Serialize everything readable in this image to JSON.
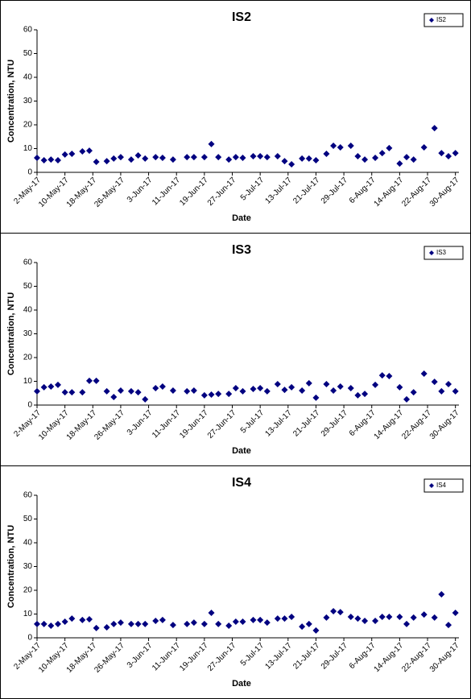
{
  "chart_data": [
    {
      "type": "scatter",
      "title": "IS2",
      "x_label": "Date",
      "y_label": "Concentration, NTU",
      "legend": "upper right",
      "grid": false,
      "x": [
        "2017-05-02",
        "2017-05-04",
        "2017-05-06",
        "2017-05-08",
        "2017-05-10",
        "2017-05-12",
        "2017-05-15",
        "2017-05-17",
        "2017-05-19",
        "2017-05-22",
        "2017-05-24",
        "2017-05-26",
        "2017-05-29",
        "2017-05-31",
        "2017-06-02",
        "2017-06-05",
        "2017-06-07",
        "2017-06-10",
        "2017-06-14",
        "2017-06-16",
        "2017-06-19",
        "2017-06-21",
        "2017-06-23",
        "2017-06-26",
        "2017-06-28",
        "2017-06-30",
        "2017-07-03",
        "2017-07-05",
        "2017-07-07",
        "2017-07-10",
        "2017-07-12",
        "2017-07-14",
        "2017-07-17",
        "2017-07-19",
        "2017-07-21",
        "2017-07-24",
        "2017-07-26",
        "2017-07-28",
        "2017-07-31",
        "2017-08-02",
        "2017-08-04",
        "2017-08-07",
        "2017-08-09",
        "2017-08-11",
        "2017-08-14",
        "2017-08-16",
        "2017-08-18",
        "2017-08-21",
        "2017-08-24",
        "2017-08-26",
        "2017-08-28",
        "2017-08-30"
      ],
      "series": [
        {
          "name": "IS2",
          "color": "#000080",
          "values": [
            6.1,
            5.1,
            5.4,
            5.1,
            7.5,
            7.8,
            8.8,
            9.1,
            4.4,
            4.7,
            5.8,
            6.4,
            5.4,
            7.1,
            5.8,
            6.4,
            6.1,
            5.4,
            6.4,
            6.4,
            6.4,
            11.9,
            6.4,
            5.4,
            6.4,
            6.1,
            6.8,
            6.8,
            6.4,
            6.8,
            4.7,
            3.4,
            5.8,
            5.8,
            5.1,
            7.8,
            11.2,
            10.5,
            11.2,
            6.8,
            5.4,
            6.1,
            8.1,
            10.2,
            3.7,
            6.4,
            5.4,
            10.5,
            18.6,
            8.1,
            6.8,
            8.1
          ]
        }
      ],
      "xlim": [
        "2017-05-02",
        "2017-08-31"
      ],
      "ylim": [
        0,
        60
      ],
      "yticks": [
        0,
        10,
        20,
        30,
        40,
        50,
        60
      ],
      "xticks": [
        {
          "value": "2017-05-02",
          "label": "2-May-17"
        },
        {
          "value": "2017-05-10",
          "label": "10-May-17"
        },
        {
          "value": "2017-05-18",
          "label": "18-May-17"
        },
        {
          "value": "2017-05-26",
          "label": "26-May-17"
        },
        {
          "value": "2017-06-03",
          "label": "3-Jun-17"
        },
        {
          "value": "2017-06-11",
          "label": "11-Jun-17"
        },
        {
          "value": "2017-06-19",
          "label": "19-Jun-17"
        },
        {
          "value": "2017-06-27",
          "label": "27-Jun-17"
        },
        {
          "value": "2017-07-05",
          "label": "5-Jul-17"
        },
        {
          "value": "2017-07-13",
          "label": "13-Jul-17"
        },
        {
          "value": "2017-07-21",
          "label": "21-Jul-17"
        },
        {
          "value": "2017-07-29",
          "label": "29-Jul-17"
        },
        {
          "value": "2017-08-06",
          "label": "6-Aug-17"
        },
        {
          "value": "2017-08-14",
          "label": "14-Aug-17"
        },
        {
          "value": "2017-08-22",
          "label": "22-Aug-17"
        },
        {
          "value": "2017-08-30",
          "label": "30-Aug-17"
        }
      ]
    },
    {
      "type": "scatter",
      "title": "IS3",
      "x_label": "Date",
      "y_label": "Concentration, NTU",
      "legend": "upper right",
      "grid": false,
      "x": [
        "2017-05-02",
        "2017-05-04",
        "2017-05-06",
        "2017-05-08",
        "2017-05-10",
        "2017-05-12",
        "2017-05-15",
        "2017-05-17",
        "2017-05-19",
        "2017-05-22",
        "2017-05-24",
        "2017-05-26",
        "2017-05-29",
        "2017-05-31",
        "2017-06-02",
        "2017-06-05",
        "2017-06-07",
        "2017-06-10",
        "2017-06-14",
        "2017-06-16",
        "2017-06-19",
        "2017-06-21",
        "2017-06-23",
        "2017-06-26",
        "2017-06-28",
        "2017-06-30",
        "2017-07-03",
        "2017-07-05",
        "2017-07-07",
        "2017-07-10",
        "2017-07-12",
        "2017-07-14",
        "2017-07-17",
        "2017-07-19",
        "2017-07-21",
        "2017-07-24",
        "2017-07-26",
        "2017-07-28",
        "2017-07-31",
        "2017-08-02",
        "2017-08-04",
        "2017-08-07",
        "2017-08-09",
        "2017-08-11",
        "2017-08-14",
        "2017-08-16",
        "2017-08-18",
        "2017-08-21",
        "2017-08-24",
        "2017-08-26",
        "2017-08-28",
        "2017-08-30"
      ],
      "series": [
        {
          "name": "IS3",
          "color": "#000080",
          "values": [
            5.8,
            7.5,
            7.8,
            8.5,
            5.4,
            5.4,
            5.4,
            10.2,
            10.2,
            5.8,
            3.4,
            6.1,
            5.8,
            5.4,
            2.4,
            7.1,
            7.8,
            6.1,
            5.8,
            6.1,
            4.1,
            4.4,
            4.7,
            4.7,
            7.1,
            5.8,
            6.8,
            7.1,
            5.8,
            8.8,
            6.4,
            7.5,
            6.1,
            9.2,
            3.1,
            8.8,
            6.1,
            7.8,
            7.1,
            4.1,
            4.7,
            8.5,
            12.5,
            12.2,
            7.5,
            2.4,
            5.4,
            13.2,
            9.8,
            5.8,
            8.8,
            5.8
          ]
        }
      ],
      "xlim": [
        "2017-05-02",
        "2017-08-31"
      ],
      "ylim": [
        0,
        60
      ],
      "yticks": [
        0,
        10,
        20,
        30,
        40,
        50,
        60
      ],
      "xticks": [
        {
          "value": "2017-05-02",
          "label": "2-May-17"
        },
        {
          "value": "2017-05-10",
          "label": "10-May-17"
        },
        {
          "value": "2017-05-18",
          "label": "18-May-17"
        },
        {
          "value": "2017-05-26",
          "label": "26-May-17"
        },
        {
          "value": "2017-06-03",
          "label": "3-Jun-17"
        },
        {
          "value": "2017-06-11",
          "label": "11-Jun-17"
        },
        {
          "value": "2017-06-19",
          "label": "19-Jun-17"
        },
        {
          "value": "2017-06-27",
          "label": "27-Jun-17"
        },
        {
          "value": "2017-07-05",
          "label": "5-Jul-17"
        },
        {
          "value": "2017-07-13",
          "label": "13-Jul-17"
        },
        {
          "value": "2017-07-21",
          "label": "21-Jul-17"
        },
        {
          "value": "2017-07-29",
          "label": "29-Jul-17"
        },
        {
          "value": "2017-08-06",
          "label": "6-Aug-17"
        },
        {
          "value": "2017-08-14",
          "label": "14-Aug-17"
        },
        {
          "value": "2017-08-22",
          "label": "22-Aug-17"
        },
        {
          "value": "2017-08-30",
          "label": "30-Aug-17"
        }
      ]
    },
    {
      "type": "scatter",
      "title": "IS4",
      "x_label": "Date",
      "y_label": "Concentration, NTU",
      "legend": "upper right",
      "grid": false,
      "x": [
        "2017-05-02",
        "2017-05-04",
        "2017-05-06",
        "2017-05-08",
        "2017-05-10",
        "2017-05-12",
        "2017-05-15",
        "2017-05-17",
        "2017-05-19",
        "2017-05-22",
        "2017-05-24",
        "2017-05-26",
        "2017-05-29",
        "2017-05-31",
        "2017-06-02",
        "2017-06-05",
        "2017-06-07",
        "2017-06-10",
        "2017-06-14",
        "2017-06-16",
        "2017-06-19",
        "2017-06-21",
        "2017-06-23",
        "2017-06-26",
        "2017-06-28",
        "2017-06-30",
        "2017-07-03",
        "2017-07-05",
        "2017-07-07",
        "2017-07-10",
        "2017-07-12",
        "2017-07-14",
        "2017-07-17",
        "2017-07-19",
        "2017-07-21",
        "2017-07-24",
        "2017-07-26",
        "2017-07-28",
        "2017-07-31",
        "2017-08-02",
        "2017-08-04",
        "2017-08-07",
        "2017-08-09",
        "2017-08-11",
        "2017-08-14",
        "2017-08-16",
        "2017-08-18",
        "2017-08-21",
        "2017-08-24",
        "2017-08-26",
        "2017-08-28",
        "2017-08-30"
      ],
      "series": [
        {
          "name": "IS4",
          "color": "#000080",
          "values": [
            5.8,
            5.8,
            5.1,
            5.8,
            6.8,
            8.1,
            7.5,
            7.8,
            4.1,
            4.4,
            5.8,
            6.4,
            5.8,
            5.8,
            5.8,
            7.1,
            7.5,
            5.4,
            5.8,
            6.4,
            5.8,
            10.5,
            5.8,
            5.1,
            6.8,
            6.8,
            7.5,
            7.5,
            6.4,
            8.1,
            8.1,
            8.8,
            4.7,
            5.8,
            3.1,
            8.5,
            11.2,
            10.8,
            8.8,
            8.1,
            7.1,
            7.1,
            8.8,
            8.8,
            8.8,
            5.8,
            8.5,
            9.8,
            8.5,
            18.3,
            5.4,
            10.5
          ]
        }
      ],
      "xlim": [
        "2017-05-02",
        "2017-08-31"
      ],
      "ylim": [
        0,
        60
      ],
      "yticks": [
        0,
        10,
        20,
        30,
        40,
        50,
        60
      ],
      "xticks": [
        {
          "value": "2017-05-02",
          "label": "2-May-17"
        },
        {
          "value": "2017-05-10",
          "label": "10-May-17"
        },
        {
          "value": "2017-05-18",
          "label": "18-May-17"
        },
        {
          "value": "2017-05-26",
          "label": "26-May-17"
        },
        {
          "value": "2017-06-03",
          "label": "3-Jun-17"
        },
        {
          "value": "2017-06-11",
          "label": "11-Jun-17"
        },
        {
          "value": "2017-06-19",
          "label": "19-Jun-17"
        },
        {
          "value": "2017-06-27",
          "label": "27-Jun-17"
        },
        {
          "value": "2017-07-05",
          "label": "5-Jul-17"
        },
        {
          "value": "2017-07-13",
          "label": "13-Jul-17"
        },
        {
          "value": "2017-07-21",
          "label": "21-Jul-17"
        },
        {
          "value": "2017-07-29",
          "label": "29-Jul-17"
        },
        {
          "value": "2017-08-06",
          "label": "6-Aug-17"
        },
        {
          "value": "2017-08-14",
          "label": "14-Aug-17"
        },
        {
          "value": "2017-08-22",
          "label": "22-Aug-17"
        },
        {
          "value": "2017-08-30",
          "label": "30-Aug-17"
        }
      ]
    }
  ]
}
